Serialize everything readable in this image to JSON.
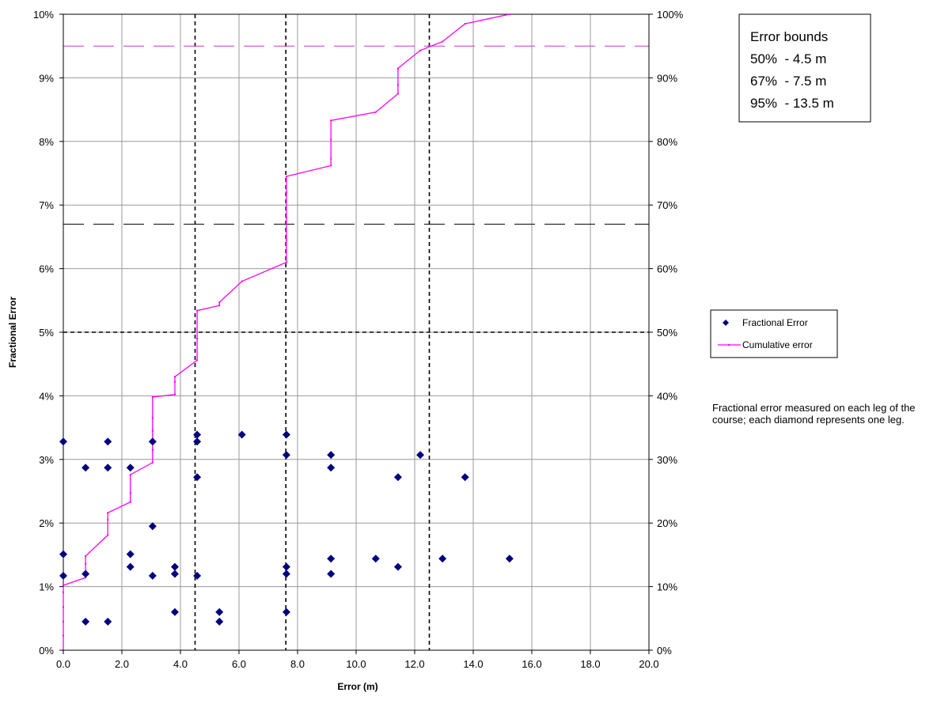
{
  "chart_data": {
    "type": "scatter",
    "xlabel": "Error (m)",
    "ylabel": "Fractional Error",
    "xlim": [
      0,
      20
    ],
    "ylim": [
      0,
      10
    ],
    "y2lim": [
      0,
      100
    ],
    "x_ticks": [
      "0.0",
      "2.0",
      "4.0",
      "6.0",
      "8.0",
      "10.0",
      "12.0",
      "14.0",
      "16.0",
      "18.0",
      "20.0"
    ],
    "y_ticks": [
      "0%",
      "1%",
      "2%",
      "3%",
      "4%",
      "5%",
      "6%",
      "7%",
      "8%",
      "9%",
      "10%"
    ],
    "y2_ticks": [
      "0%",
      "10%",
      "20%",
      "30%",
      "40%",
      "50%",
      "60%",
      "70%",
      "80%",
      "90%",
      "100%"
    ],
    "grid": true,
    "legend_position": "right",
    "series": [
      {
        "name": "Fractional Error",
        "kind": "scatter",
        "axis": "left",
        "unit": "%",
        "color": "#000080",
        "marker": "diamond",
        "points": [
          [
            0.0,
            3.28
          ],
          [
            0.0,
            1.51
          ],
          [
            0.0,
            1.17
          ],
          [
            0.76,
            2.87
          ],
          [
            0.76,
            1.2
          ],
          [
            0.76,
            0.45
          ],
          [
            1.52,
            3.28
          ],
          [
            1.52,
            2.87
          ],
          [
            1.52,
            0.45
          ],
          [
            2.29,
            2.87
          ],
          [
            2.29,
            1.51
          ],
          [
            2.29,
            1.31
          ],
          [
            3.05,
            3.28
          ],
          [
            3.05,
            1.95
          ],
          [
            3.05,
            1.17
          ],
          [
            3.81,
            1.31
          ],
          [
            3.81,
            1.2
          ],
          [
            3.81,
            0.6
          ],
          [
            4.57,
            3.39
          ],
          [
            4.57,
            3.28
          ],
          [
            4.57,
            2.72
          ],
          [
            4.57,
            1.17
          ],
          [
            5.33,
            0.6
          ],
          [
            5.33,
            0.45
          ],
          [
            6.1,
            3.39
          ],
          [
            7.62,
            3.39
          ],
          [
            7.62,
            3.07
          ],
          [
            7.62,
            1.31
          ],
          [
            7.62,
            1.2
          ],
          [
            7.62,
            0.6
          ],
          [
            9.14,
            3.07
          ],
          [
            9.14,
            2.87
          ],
          [
            9.14,
            1.44
          ],
          [
            9.14,
            1.2
          ],
          [
            10.67,
            1.44
          ],
          [
            11.43,
            2.72
          ],
          [
            11.43,
            1.31
          ],
          [
            12.19,
            3.07
          ],
          [
            12.95,
            1.44
          ],
          [
            13.72,
            2.72
          ],
          [
            15.24,
            1.44
          ]
        ]
      },
      {
        "name": "Cumulative error",
        "kind": "line",
        "axis": "right",
        "unit": "%",
        "color": "#ff00ff",
        "points": [
          [
            0.0,
            0
          ],
          [
            0.0,
            2.3
          ],
          [
            0.0,
            4.5
          ],
          [
            0.0,
            6.8
          ],
          [
            0.0,
            9.1
          ],
          [
            0.0,
            10.2
          ],
          [
            0.76,
            11.4
          ],
          [
            0.76,
            13.6
          ],
          [
            0.76,
            14.8
          ],
          [
            1.52,
            18.1
          ],
          [
            1.52,
            20.5
          ],
          [
            1.52,
            21.6
          ],
          [
            2.29,
            23.3
          ],
          [
            2.29,
            24.7
          ],
          [
            2.29,
            27.6
          ],
          [
            3.05,
            29.5
          ],
          [
            3.05,
            31.5
          ],
          [
            3.05,
            34.5
          ],
          [
            3.05,
            36.5
          ],
          [
            3.05,
            39.8
          ],
          [
            3.81,
            40.2
          ],
          [
            3.81,
            42.2
          ],
          [
            3.81,
            43.0
          ],
          [
            4.57,
            45.6
          ],
          [
            4.57,
            49.0
          ],
          [
            4.57,
            53.4
          ],
          [
            5.33,
            54.2
          ],
          [
            5.33,
            54.7
          ],
          [
            6.1,
            58.0
          ],
          [
            7.62,
            61.0
          ],
          [
            7.62,
            64.5
          ],
          [
            7.62,
            68.0
          ],
          [
            7.62,
            72.0
          ],
          [
            7.62,
            74.5
          ],
          [
            9.14,
            76.2
          ],
          [
            9.14,
            77.3
          ],
          [
            9.14,
            80.3
          ],
          [
            9.14,
            83.3
          ],
          [
            10.67,
            84.6
          ],
          [
            11.43,
            87.5
          ],
          [
            11.43,
            88.9
          ],
          [
            11.43,
            91.5
          ],
          [
            12.19,
            94.3
          ],
          [
            12.95,
            95.7
          ],
          [
            13.72,
            98.5
          ],
          [
            15.24,
            100.0
          ]
        ]
      }
    ],
    "reference_lines": [
      {
        "orientation": "vertical",
        "x": 4.5,
        "style": "dashed",
        "color": "#000000"
      },
      {
        "orientation": "vertical",
        "x": 7.6,
        "style": "dashed",
        "color": "#000000"
      },
      {
        "orientation": "vertical",
        "x": 12.5,
        "style": "dashed",
        "color": "#000000"
      },
      {
        "orientation": "horizontal",
        "axis": "right",
        "y": 50,
        "style": "dashed",
        "color": "#000000"
      },
      {
        "orientation": "horizontal",
        "axis": "right",
        "y": 67,
        "style": "long-dash",
        "color": "#000000"
      },
      {
        "orientation": "horizontal",
        "axis": "right",
        "y": 95,
        "style": "long-dash",
        "color": "#cc33cc"
      }
    ],
    "annotations": {
      "error_bounds_box": {
        "title": "Error bounds",
        "lines": [
          "50%  - 4.5 m",
          "67%  - 7.5 m",
          "95%  - 13.5 m"
        ]
      },
      "note": "Fractional error measured on each leg of the course; each diamond represents one leg."
    }
  }
}
